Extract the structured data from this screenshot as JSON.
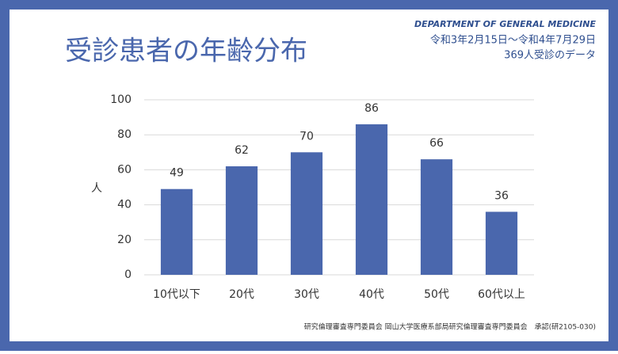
{
  "header": {
    "department": "DEPARTMENT OF GENERAL MEDICINE",
    "period": "令和3年2月15日～令和4年7月29日",
    "note": "369人受診のデータ"
  },
  "footer": "研究倫理審査専門委員会 岡山大学医療系部局研究倫理審査専門委員会　承認(研2105-030)",
  "chart_data": {
    "type": "bar",
    "title": "受診患者の年齢分布",
    "y_label": "人",
    "categories": [
      "10代以下",
      "20代",
      "30代",
      "40代",
      "50代",
      "60代以上"
    ],
    "values": [
      49,
      62,
      70,
      86,
      66,
      36
    ],
    "color": "#4a67ad",
    "ylim": [
      0,
      100
    ],
    "yticks": [
      0,
      20,
      40,
      60,
      80,
      100
    ],
    "grid": true
  }
}
